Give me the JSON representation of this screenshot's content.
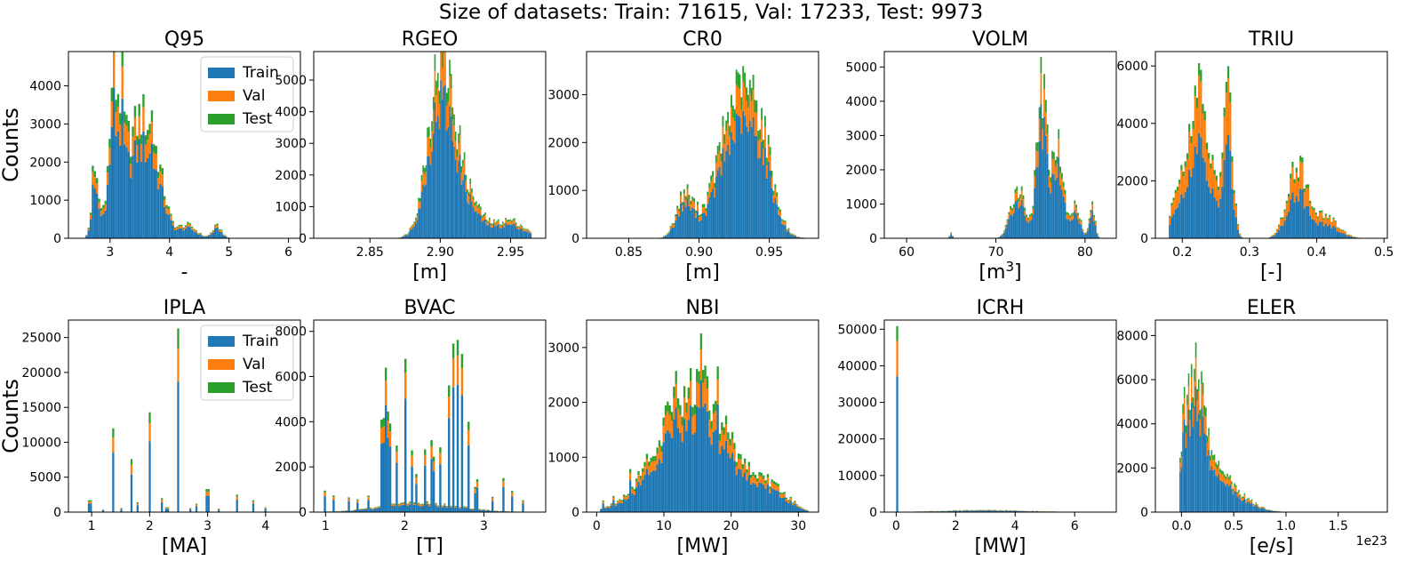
{
  "suptitle": "Size of datasets: Train: 71615, Val: 17233, Test: 9973",
  "colors": {
    "Train": "#1f77b4",
    "Val": "#ff7f0e",
    "Test": "#2ca02c"
  },
  "chart_data": [
    {
      "type": "bar",
      "title": "Q95",
      "xlabel": "-",
      "ylabel": "Counts",
      "xlim": [
        2.3,
        6.2
      ],
      "ylim": [
        0,
        4900
      ],
      "xticks": [
        3,
        4,
        5,
        6
      ],
      "yticks": [
        0,
        1000,
        2000,
        3000,
        4000
      ],
      "xticklabels": [
        "3",
        "4",
        "5",
        "6"
      ],
      "yticklabels": [
        "0",
        "1000",
        "2000",
        "3000",
        "4000"
      ],
      "legend": "upper right",
      "series": [
        {
          "name": "Train"
        },
        {
          "name": "Val"
        },
        {
          "name": "Test"
        }
      ],
      "peaks": [
        [
          2.75,
          1500,
          0.06
        ],
        [
          3.1,
          3500,
          0.12
        ],
        [
          3.5,
          3000,
          0.2
        ],
        [
          3.8,
          1200,
          0.15
        ],
        [
          4.3,
          350,
          0.15
        ],
        [
          4.8,
          320,
          0.08
        ]
      ],
      "spikes": [
        [
          2.7,
          900
        ],
        [
          3.05,
          1000
        ],
        [
          3.2,
          700
        ],
        [
          3.7,
          800
        ]
      ],
      "xmin": 2.55,
      "xmax": 6.1,
      "fracs": [
        0.74,
        0.17,
        0.09
      ]
    },
    {
      "type": "bar",
      "title": "RGEO",
      "xlabel": "[m]",
      "ylabel": "",
      "xlim": [
        2.81,
        2.975
      ],
      "ylim": [
        0,
        5900
      ],
      "xticks": [
        2.85,
        2.9,
        2.95
      ],
      "yticks": [
        0,
        1000,
        2000,
        3000,
        4000,
        5000
      ],
      "xticklabels": [
        "2.85",
        "2.90",
        "2.95"
      ],
      "yticklabels": [
        "0",
        "1000",
        "2000",
        "3000",
        "4000",
        "5000"
      ],
      "legend": "none",
      "series": [
        {
          "name": "Train"
        },
        {
          "name": "Val"
        },
        {
          "name": "Test"
        }
      ],
      "peaks": [
        [
          2.9,
          5000,
          0.009
        ],
        [
          2.915,
          1500,
          0.012
        ],
        [
          2.95,
          550,
          0.01
        ]
      ],
      "spikes": [
        [
          2.898,
          400
        ],
        [
          2.902,
          300
        ]
      ],
      "xmin": 2.86,
      "xmax": 2.965,
      "fracs": [
        0.74,
        0.17,
        0.09
      ]
    },
    {
      "type": "bar",
      "title": "CR0",
      "xlabel": "[m]",
      "ylabel": "",
      "xlim": [
        0.82,
        0.985
      ],
      "ylim": [
        0,
        3900
      ],
      "xticks": [
        0.85,
        0.9,
        0.95
      ],
      "yticks": [
        0,
        1000,
        2000,
        3000
      ],
      "xticklabels": [
        "0.85",
        "0.90",
        "0.95"
      ],
      "yticklabels": [
        "0",
        "1000",
        "2000",
        "3000"
      ],
      "legend": "none",
      "series": [
        {
          "name": "Train"
        },
        {
          "name": "Val"
        },
        {
          "name": "Test"
        }
      ],
      "peaks": [
        [
          0.89,
          900,
          0.006
        ],
        [
          0.928,
          2900,
          0.014
        ],
        [
          0.945,
          1100,
          0.008
        ]
      ],
      "spikes": [
        [
          0.93,
          500
        ],
        [
          0.925,
          300
        ]
      ],
      "xmin": 0.86,
      "xmax": 0.98,
      "fracs": [
        0.74,
        0.17,
        0.09
      ]
    },
    {
      "type": "bar",
      "title": "VOLM",
      "xlabel": "[m3]",
      "ylabel": "",
      "xlim": [
        57.5,
        83.5
      ],
      "ylim": [
        0,
        5450
      ],
      "xticks": [
        60,
        70,
        80
      ],
      "yticks": [
        0,
        1000,
        2000,
        3000,
        4000,
        5000
      ],
      "xticklabels": [
        "60",
        "70",
        "80"
      ],
      "yticklabels": [
        "0",
        "1000",
        "2000",
        "3000",
        "4000",
        "5000"
      ],
      "legend": "none",
      "series": [
        {
          "name": "Train"
        },
        {
          "name": "Val"
        },
        {
          "name": "Test"
        }
      ],
      "peaks": [
        [
          72.5,
          1500,
          0.8
        ],
        [
          75.2,
          4200,
          0.6
        ],
        [
          77,
          2700,
          0.6
        ],
        [
          79,
          1000,
          0.5
        ],
        [
          80.8,
          1000,
          0.3
        ],
        [
          65,
          150,
          0.15
        ]
      ],
      "spikes": [
        [
          75,
          600
        ],
        [
          76.5,
          800
        ]
      ],
      "xmin": 64,
      "xmax": 82,
      "fracs": [
        0.74,
        0.17,
        0.09
      ]
    },
    {
      "type": "bar",
      "title": "TRIU",
      "xlabel": "[-]",
      "ylabel": "",
      "xlim": [
        0.16,
        0.505
      ],
      "ylim": [
        0,
        6500
      ],
      "xticks": [
        0.2,
        0.3,
        0.4,
        0.5
      ],
      "yticks": [
        0,
        2000,
        4000,
        6000
      ],
      "xticklabels": [
        "0.2",
        "0.3",
        "0.4",
        "0.5"
      ],
      "yticklabels": [
        "0",
        "2000",
        "4000",
        "6000"
      ],
      "legend": "none",
      "series": [
        {
          "name": "Train"
        },
        {
          "name": "Val"
        },
        {
          "name": "Test"
        }
      ],
      "peaks": [
        [
          0.2,
          2500,
          0.012
        ],
        [
          0.225,
          4600,
          0.01
        ],
        [
          0.268,
          4800,
          0.007
        ],
        [
          0.245,
          1900,
          0.01
        ],
        [
          0.37,
          2600,
          0.014
        ],
        [
          0.41,
          800,
          0.02
        ]
      ],
      "spikes": [
        [
          0.22,
          600
        ],
        [
          0.27,
          600
        ]
      ],
      "xmin": 0.18,
      "xmax": 0.47,
      "fracs": [
        0.6,
        0.33,
        0.07
      ]
    },
    {
      "type": "bar",
      "title": "IPLA",
      "xlabel": "[MA]",
      "ylabel": "Counts",
      "xlim": [
        0.6,
        4.6
      ],
      "ylim": [
        0,
        27500
      ],
      "xticks": [
        1,
        2,
        3,
        4
      ],
      "yticks": [
        0,
        5000,
        10000,
        15000,
        20000,
        25000
      ],
      "xticklabels": [
        "1",
        "2",
        "3",
        "4"
      ],
      "yticklabels": [
        "0",
        "5000",
        "10000",
        "15000",
        "20000",
        "25000"
      ],
      "legend": "upper right",
      "series": [
        {
          "name": "Train"
        },
        {
          "name": "Val"
        },
        {
          "name": "Test"
        }
      ],
      "peaks": [],
      "spikes": [
        [
          0.97,
          1700
        ],
        [
          1.37,
          12000
        ],
        [
          1.68,
          7600
        ],
        [
          2.0,
          14300
        ],
        [
          2.48,
          26300
        ],
        [
          3.0,
          3300
        ],
        [
          3.5,
          2500
        ],
        [
          3.78,
          1700
        ],
        [
          2.2,
          2000
        ],
        [
          1.8,
          1400
        ],
        [
          2.8,
          1200
        ],
        [
          2.3,
          700
        ],
        [
          4.0,
          700
        ],
        [
          1.5,
          600
        ],
        [
          2.7,
          600
        ],
        [
          3.2,
          500
        ],
        [
          1.2,
          400
        ]
      ],
      "xmin": 0.9,
      "xmax": 4.4,
      "fracs": [
        0.71,
        0.18,
        0.11
      ]
    },
    {
      "type": "bar",
      "title": "BVAC",
      "xlabel": "[T]",
      "ylabel": "",
      "xlim": [
        0.85,
        3.78
      ],
      "ylim": [
        0,
        8500
      ],
      "xticks": [
        1,
        2,
        3
      ],
      "yticks": [
        0,
        2000,
        4000,
        6000,
        8000
      ],
      "xticklabels": [
        "1",
        "2",
        "3"
      ],
      "yticklabels": [
        "0",
        "2000",
        "4000",
        "6000",
        "8000"
      ],
      "legend": "none",
      "series": [
        {
          "name": "Train"
        },
        {
          "name": "Val"
        },
        {
          "name": "Test"
        }
      ],
      "peaks": [
        [
          2.2,
          400,
          0.5
        ]
      ],
      "spikes": [
        [
          1.7,
          4800
        ],
        [
          1.75,
          5000
        ],
        [
          1.8,
          3500
        ],
        [
          1.9,
          2800
        ],
        [
          2.0,
          5800
        ],
        [
          2.1,
          2900
        ],
        [
          2.25,
          2200
        ],
        [
          2.35,
          2400
        ],
        [
          2.45,
          2500
        ],
        [
          2.55,
          4500
        ],
        [
          2.62,
          6500
        ],
        [
          2.67,
          8200
        ],
        [
          2.72,
          5600
        ],
        [
          2.8,
          3200
        ],
        [
          2.9,
          1200
        ],
        [
          3.25,
          1200
        ],
        [
          3.35,
          1100
        ],
        [
          1.0,
          800
        ],
        [
          1.1,
          700
        ],
        [
          1.3,
          700
        ],
        [
          1.4,
          600
        ],
        [
          1.55,
          500
        ],
        [
          3.5,
          500
        ],
        [
          3.1,
          600
        ],
        [
          2.15,
          1500
        ]
      ],
      "xmin": 0.95,
      "xmax": 3.7,
      "fracs": [
        0.74,
        0.17,
        0.09
      ]
    },
    {
      "type": "bar",
      "title": "NBI",
      "xlabel": "[MW]",
      "ylabel": "",
      "xlim": [
        -1.5,
        33
      ],
      "ylim": [
        0,
        3500
      ],
      "xticks": [
        0,
        10,
        20,
        30
      ],
      "yticks": [
        0,
        1000,
        2000,
        3000
      ],
      "xticklabels": [
        "0",
        "10",
        "20",
        "30"
      ],
      "yticklabels": [
        "0",
        "1000",
        "2000",
        "3000"
      ],
      "legend": "none",
      "series": [
        {
          "name": "Train"
        },
        {
          "name": "Val"
        },
        {
          "name": "Test"
        }
      ],
      "peaks": [
        [
          14.5,
          2300,
          5.2
        ],
        [
          26,
          350,
          2.5
        ]
      ],
      "spikes": [
        [
          13,
          600
        ],
        [
          15.5,
          800
        ],
        [
          16,
          700
        ],
        [
          12,
          400
        ],
        [
          10,
          300
        ],
        [
          18,
          400
        ],
        [
          1,
          150
        ],
        [
          2.5,
          200
        ],
        [
          5,
          300
        ]
      ],
      "xmin": 0.5,
      "xmax": 31.5,
      "fracs": [
        0.74,
        0.17,
        0.09
      ]
    },
    {
      "type": "bar",
      "title": "ICRH",
      "xlabel": "[MW]",
      "ylabel": "",
      "xlim": [
        -0.4,
        7.4
      ],
      "ylim": [
        0,
        52500
      ],
      "xticks": [
        0,
        2,
        4,
        6
      ],
      "yticks": [
        0,
        10000,
        20000,
        30000,
        40000,
        50000
      ],
      "xticklabels": [
        "0",
        "2",
        "4",
        "6"
      ],
      "yticklabels": [
        "0",
        "10000",
        "20000",
        "30000",
        "40000",
        "50000"
      ],
      "legend": "none",
      "series": [
        {
          "name": "Train"
        },
        {
          "name": "Val"
        },
        {
          "name": "Test"
        }
      ],
      "peaks": [
        [
          3,
          550,
          1.5
        ]
      ],
      "spikes": [
        [
          0.0,
          50400
        ]
      ],
      "xmin": 0.0,
      "xmax": 6.8,
      "fracs": [
        0.73,
        0.19,
        0.08
      ]
    },
    {
      "type": "bar",
      "title": "ELER",
      "xlabel": "[e/s]",
      "ylabel": "",
      "xlim": [
        -0.25,
        1.97
      ],
      "ylim": [
        0,
        8700
      ],
      "xticks": [
        0,
        0.5,
        1,
        1.5
      ],
      "yticks": [
        0,
        2000,
        4000,
        6000,
        8000
      ],
      "xticklabels": [
        "0.0",
        "0.5",
        "1.0",
        "1.5"
      ],
      "yticklabels": [
        "0",
        "2000",
        "4000",
        "6000",
        "8000"
      ],
      "legend": "none",
      "offset_text": "1e23",
      "series": [
        {
          "name": "Train"
        },
        {
          "name": "Val"
        },
        {
          "name": "Test"
        }
      ],
      "peaks": [
        [
          0.12,
          5800,
          0.09
        ],
        [
          0.33,
          1800,
          0.15
        ],
        [
          0.6,
          400,
          0.15
        ]
      ],
      "spikes": [
        [
          0.02,
          2000
        ],
        [
          0.07,
          1500
        ],
        [
          0.17,
          1000
        ]
      ],
      "xmin": -0.02,
      "xmax": 1.35,
      "fracs": [
        0.74,
        0.17,
        0.09
      ]
    }
  ]
}
